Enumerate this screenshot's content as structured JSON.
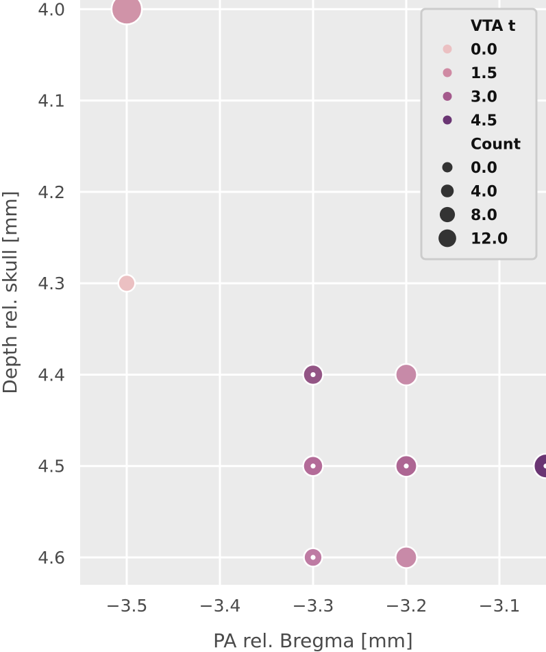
{
  "chart_data": {
    "type": "scatter",
    "title": "",
    "xlabel": "PA rel. Bregma [mm]",
    "ylabel": "Depth rel. skull [mm]",
    "xlim": [
      -3.55,
      -3.05
    ],
    "ylim": [
      3.99,
      4.63
    ],
    "y_inverted": true,
    "grid": true,
    "x_ticks": [
      -3.5,
      -3.4,
      -3.3,
      -3.2,
      -3.1
    ],
    "x_tick_labels": [
      "−3.5",
      "−3.4",
      "−3.3",
      "−3.2",
      "−3.1"
    ],
    "y_ticks": [
      4.0,
      4.1,
      4.2,
      4.3,
      4.4,
      4.5,
      4.6
    ],
    "y_tick_labels": [
      "4.0",
      "4.1",
      "4.2",
      "4.3",
      "4.4",
      "4.5",
      "4.6"
    ],
    "points": [
      {
        "x": -3.5,
        "y": 4.0,
        "vta": 1.5,
        "count": 12,
        "color": "#d093a8",
        "marker": false
      },
      {
        "x": -3.5,
        "y": 4.3,
        "vta": 0.0,
        "count": 3,
        "color": "#ebc0c2",
        "marker": false
      },
      {
        "x": -3.3,
        "y": 4.4,
        "vta": 3.5,
        "count": 5,
        "color": "#935585",
        "marker": true
      },
      {
        "x": -3.2,
        "y": 4.4,
        "vta": 2.0,
        "count": 6,
        "color": "#c78aa8",
        "marker": false
      },
      {
        "x": -3.3,
        "y": 4.5,
        "vta": 3.0,
        "count": 5,
        "color": "#b36b98",
        "marker": true
      },
      {
        "x": -3.2,
        "y": 4.5,
        "vta": 3.0,
        "count": 6,
        "color": "#ad6693",
        "marker": true
      },
      {
        "x": -3.05,
        "y": 4.5,
        "vta": 4.5,
        "count": 8,
        "color": "#6a3573",
        "marker": true
      },
      {
        "x": -3.3,
        "y": 4.6,
        "vta": 2.5,
        "count": 4,
        "color": "#be7ba3",
        "marker": true
      },
      {
        "x": -3.2,
        "y": 4.6,
        "vta": 2.0,
        "count": 6,
        "color": "#c88aa8",
        "marker": false
      }
    ],
    "legend": {
      "placement": "top-right",
      "hue_title": "VTA t",
      "hue_entries": [
        {
          "label": "0.0",
          "color": "#ebc0c2"
        },
        {
          "label": "1.5",
          "color": "#cf8aa3"
        },
        {
          "label": "3.0",
          "color": "#a45a8c"
        },
        {
          "label": "4.5",
          "color": "#6a3573"
        }
      ],
      "size_title": "Count",
      "size_entries": [
        {
          "label": "0.0",
          "count": 0
        },
        {
          "label": "4.0",
          "count": 4
        },
        {
          "label": "8.0",
          "count": 8
        },
        {
          "label": "12.0",
          "count": 12
        }
      ],
      "size_color": "#333333"
    },
    "colors": {
      "plot_background": "#ebebeb",
      "grid": "#ffffff",
      "point_edge": "#ffffff",
      "legend_border": "#cccccc",
      "legend_background": "#ebebeb"
    }
  }
}
